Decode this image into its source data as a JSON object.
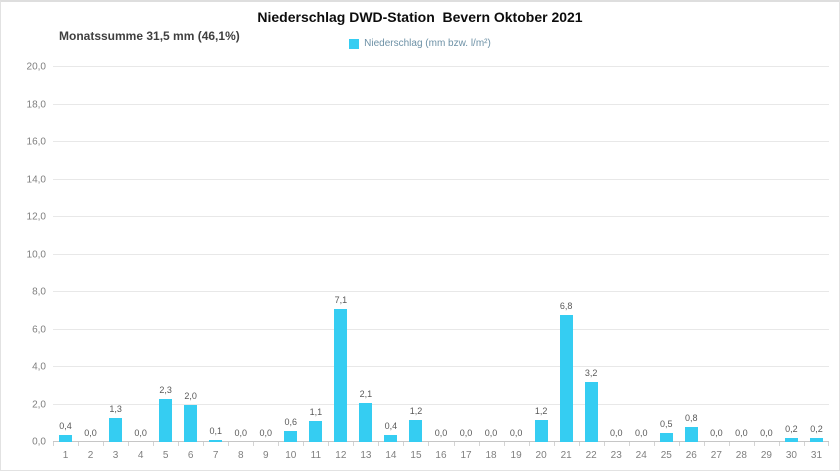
{
  "header": {
    "title": "Niederschlag DWD-Station  Bevern Oktober 2021",
    "subtitle": "Monatssumme 31,5 mm (46,1%)",
    "legend_label": "Niederschlag (mm bzw. l/m²)"
  },
  "colors": {
    "bar": "#35cdf2",
    "title_text": "#0d0d0d",
    "subtitle_text": "#3f3f3f",
    "legend_text": "#6d91a6",
    "axis_text": "#7f7f7f",
    "value_text": "#595959",
    "gridline": "#e8e8e8",
    "axis_line": "#c6c6c6",
    "panel_border": "#dedede"
  },
  "chart_data": {
    "type": "bar",
    "title": "Niederschlag DWD-Station  Bevern Oktober 2021",
    "subtitle": "Monatssumme 31,5 mm (46,1%)",
    "legend": [
      "Niederschlag (mm bzw. l/m²)"
    ],
    "legend_position": "top-center",
    "grid": true,
    "xlabel": "",
    "ylabel": "",
    "ylim": [
      0,
      20
    ],
    "y_tick_step": 2,
    "y_ticks": [
      "0,0",
      "2,0",
      "4,0",
      "6,0",
      "8,0",
      "10,0",
      "12,0",
      "14,0",
      "16,0",
      "18,0",
      "20,0"
    ],
    "categories": [
      1,
      2,
      3,
      4,
      5,
      6,
      7,
      8,
      9,
      10,
      11,
      12,
      13,
      14,
      15,
      16,
      17,
      18,
      19,
      20,
      21,
      22,
      23,
      24,
      25,
      26,
      27,
      28,
      29,
      30,
      31
    ],
    "values": [
      0.4,
      0.0,
      1.3,
      0.0,
      2.3,
      2.0,
      0.1,
      0.0,
      0.0,
      0.6,
      1.1,
      7.1,
      2.1,
      0.4,
      1.2,
      0.0,
      0.0,
      0.0,
      0.0,
      1.2,
      6.8,
      3.2,
      0.0,
      0.0,
      0.5,
      0.8,
      0.0,
      0.0,
      0.0,
      0.2,
      0.2
    ],
    "value_labels": [
      "0,4",
      "0,0",
      "1,3",
      "0,0",
      "2,3",
      "2,0",
      "0,1",
      "0,0",
      "0,0",
      "0,6",
      "1,1",
      "7,1",
      "2,1",
      "0,4",
      "1,2",
      "0,0",
      "0,0",
      "0,0",
      "0,0",
      "1,2",
      "6,8",
      "3,2",
      "0,0",
      "0,0",
      "0,5",
      "0,8",
      "0,0",
      "0,0",
      "0,0",
      "0,2",
      "0,2"
    ]
  }
}
